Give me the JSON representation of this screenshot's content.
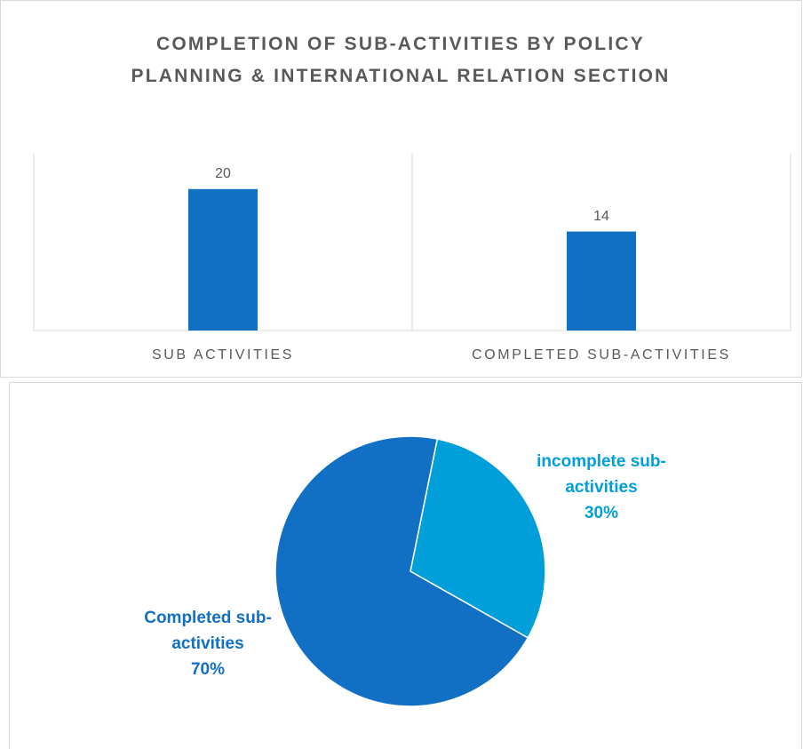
{
  "chart_data": [
    {
      "type": "bar",
      "title": "COMPLETION OF SUB-ACTIVITIES BY POLICY PLANNING & INTERNATIONAL RELATION SECTION",
      "categories": [
        "SUB ACTIVITIES",
        "COMPLETED SUB-ACTIVITIES"
      ],
      "values": [
        20,
        14
      ],
      "color": "#1170c4",
      "ylim": [
        0,
        25
      ]
    },
    {
      "type": "pie",
      "categories": [
        "incomplete sub-activities",
        "Completed sub-activities"
      ],
      "values": [
        30,
        70
      ],
      "value_labels": [
        "30%",
        "70%"
      ],
      "colors": [
        "#009fda",
        "#1170c4"
      ]
    }
  ]
}
